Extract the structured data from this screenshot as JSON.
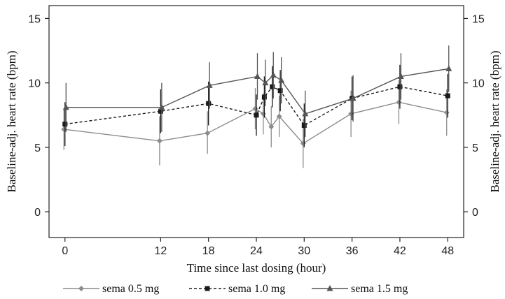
{
  "chart_data": {
    "type": "line",
    "xlabel": "Time since last dosing (hour)",
    "ylabel": "Baseline-adj. heart rate (bpm)",
    "ylabel_right": "Baseline-adj. heart rate (bpm)",
    "xlim": [
      -2,
      50
    ],
    "ylim": [
      -2,
      16
    ],
    "xticks": [
      0,
      12,
      18,
      24,
      30,
      36,
      42,
      48
    ],
    "yticks": [
      0,
      5,
      10,
      15
    ],
    "grid": false,
    "legend_position": "bottom",
    "series": [
      {
        "name": "sema 0.5 mg",
        "color": "#8c8c8c",
        "marker": "diamond",
        "line_style": "solid",
        "points": [
          {
            "x": 0,
            "y": 6.4,
            "lo": 4.8,
            "hi": 8.0
          },
          {
            "x": 12,
            "y": 5.5,
            "lo": 3.6,
            "hi": 7.4
          },
          {
            "x": 18,
            "y": 6.1,
            "lo": 4.5,
            "hi": 7.8
          },
          {
            "x": 24,
            "y": 8.0,
            "lo": 6.4,
            "hi": 9.6
          },
          {
            "x": 25,
            "y": 7.6,
            "lo": 6.0,
            "hi": 9.2
          },
          {
            "x": 26,
            "y": 6.6,
            "lo": 5.0,
            "hi": 8.2
          },
          {
            "x": 27,
            "y": 7.4,
            "lo": 5.8,
            "hi": 9.0
          },
          {
            "x": 30,
            "y": 5.3,
            "lo": 3.4,
            "hi": 7.2
          },
          {
            "x": 36,
            "y": 7.6,
            "lo": 5.8,
            "hi": 9.4
          },
          {
            "x": 42,
            "y": 8.5,
            "lo": 6.8,
            "hi": 10.2
          },
          {
            "x": 48,
            "y": 7.7,
            "lo": 5.9,
            "hi": 9.5
          }
        ]
      },
      {
        "name": "sema 1.0 mg",
        "color": "#1a1a1a",
        "marker": "square",
        "line_style": "dashed",
        "points": [
          {
            "x": 0,
            "y": 6.8,
            "lo": 5.1,
            "hi": 8.5
          },
          {
            "x": 12,
            "y": 7.8,
            "lo": 6.1,
            "hi": 9.5
          },
          {
            "x": 18,
            "y": 8.4,
            "lo": 6.7,
            "hi": 10.1
          },
          {
            "x": 24,
            "y": 7.5,
            "lo": 5.9,
            "hi": 9.1
          },
          {
            "x": 25,
            "y": 8.9,
            "lo": 7.3,
            "hi": 10.5
          },
          {
            "x": 26,
            "y": 9.7,
            "lo": 8.1,
            "hi": 11.3
          },
          {
            "x": 27,
            "y": 9.4,
            "lo": 7.8,
            "hi": 11.0
          },
          {
            "x": 30,
            "y": 6.7,
            "lo": 5.0,
            "hi": 8.4
          },
          {
            "x": 36,
            "y": 8.8,
            "lo": 7.1,
            "hi": 10.5
          },
          {
            "x": 42,
            "y": 9.7,
            "lo": 8.0,
            "hi": 11.4
          },
          {
            "x": 48,
            "y": 9.0,
            "lo": 7.3,
            "hi": 10.7
          }
        ]
      },
      {
        "name": "sema 1.5 mg",
        "color": "#555555",
        "marker": "triangle",
        "line_style": "solid",
        "points": [
          {
            "x": 0,
            "y": 8.1,
            "lo": 6.2,
            "hi": 10.0
          },
          {
            "x": 12,
            "y": 8.1,
            "lo": 6.2,
            "hi": 10.0
          },
          {
            "x": 18,
            "y": 9.8,
            "lo": 8.0,
            "hi": 11.6
          },
          {
            "x": 24,
            "y": 10.5,
            "lo": 8.7,
            "hi": 12.3
          },
          {
            "x": 25,
            "y": 10.0,
            "lo": 8.2,
            "hi": 11.8
          },
          {
            "x": 26,
            "y": 10.6,
            "lo": 8.8,
            "hi": 12.4
          },
          {
            "x": 27,
            "y": 10.2,
            "lo": 8.4,
            "hi": 12.0
          },
          {
            "x": 30,
            "y": 7.6,
            "lo": 5.8,
            "hi": 9.4
          },
          {
            "x": 36,
            "y": 8.8,
            "lo": 7.0,
            "hi": 10.6
          },
          {
            "x": 42,
            "y": 10.5,
            "lo": 8.7,
            "hi": 12.3
          },
          {
            "x": 48,
            "y": 11.1,
            "lo": 9.3,
            "hi": 12.9
          }
        ]
      }
    ]
  }
}
